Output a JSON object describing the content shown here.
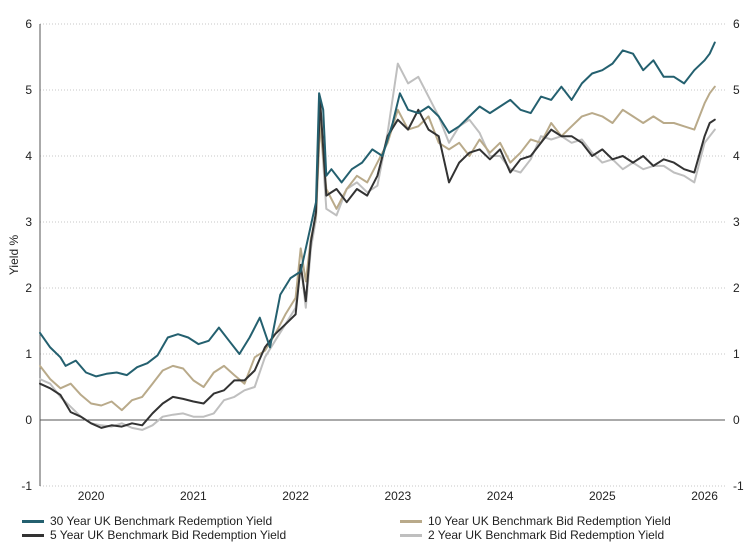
{
  "chart_data": {
    "type": "line",
    "title": "",
    "xlabel": "",
    "ylabel": "Yield %",
    "ylim": [
      -1,
      6
    ],
    "yticks": [
      "-1",
      "0",
      "1",
      "2",
      "3",
      "4",
      "5",
      "6"
    ],
    "xlim": [
      2019.5,
      2026.2
    ],
    "xticks": [
      {
        "label": "2020",
        "x": 2020.0
      },
      {
        "label": "2021",
        "x": 2021.0
      },
      {
        "label": "2022",
        "x": 2022.0
      },
      {
        "label": "2023",
        "x": 2023.0
      },
      {
        "label": "2024",
        "x": 2024.0
      },
      {
        "label": "2025",
        "x": 2025.0
      },
      {
        "label": "2026",
        "x": 2026.0
      }
    ],
    "grid": "horizontal-dotted",
    "legend_position": "bottom",
    "series": [
      {
        "name": "30 Year UK Benchmark Redemption Yield",
        "color": "#24606f",
        "points": [
          [
            2019.5,
            1.32
          ],
          [
            2019.6,
            1.1
          ],
          [
            2019.7,
            0.95
          ],
          [
            2019.75,
            0.82
          ],
          [
            2019.85,
            0.9
          ],
          [
            2019.95,
            0.72
          ],
          [
            2020.05,
            0.66
          ],
          [
            2020.15,
            0.7
          ],
          [
            2020.25,
            0.72
          ],
          [
            2020.35,
            0.68
          ],
          [
            2020.45,
            0.8
          ],
          [
            2020.55,
            0.86
          ],
          [
            2020.65,
            0.98
          ],
          [
            2020.75,
            1.25
          ],
          [
            2020.85,
            1.3
          ],
          [
            2020.95,
            1.25
          ],
          [
            2021.05,
            1.15
          ],
          [
            2021.15,
            1.2
          ],
          [
            2021.25,
            1.4
          ],
          [
            2021.35,
            1.2
          ],
          [
            2021.45,
            1.0
          ],
          [
            2021.55,
            1.25
          ],
          [
            2021.65,
            1.55
          ],
          [
            2021.75,
            1.1
          ],
          [
            2021.85,
            1.9
          ],
          [
            2021.95,
            2.15
          ],
          [
            2022.05,
            2.25
          ],
          [
            2022.15,
            2.95
          ],
          [
            2022.2,
            3.3
          ],
          [
            2022.23,
            4.95
          ],
          [
            2022.27,
            4.7
          ],
          [
            2022.3,
            3.7
          ],
          [
            2022.35,
            3.8
          ],
          [
            2022.45,
            3.6
          ],
          [
            2022.55,
            3.8
          ],
          [
            2022.65,
            3.9
          ],
          [
            2022.75,
            4.1
          ],
          [
            2022.85,
            4.0
          ],
          [
            2022.95,
            4.5
          ],
          [
            2023.02,
            4.95
          ],
          [
            2023.1,
            4.7
          ],
          [
            2023.2,
            4.65
          ],
          [
            2023.3,
            4.75
          ],
          [
            2023.4,
            4.6
          ],
          [
            2023.5,
            4.35
          ],
          [
            2023.6,
            4.45
          ],
          [
            2023.7,
            4.6
          ],
          [
            2023.8,
            4.75
          ],
          [
            2023.9,
            4.65
          ],
          [
            2024.0,
            4.75
          ],
          [
            2024.1,
            4.85
          ],
          [
            2024.2,
            4.7
          ],
          [
            2024.3,
            4.65
          ],
          [
            2024.4,
            4.9
          ],
          [
            2024.5,
            4.85
          ],
          [
            2024.6,
            5.05
          ],
          [
            2024.7,
            4.85
          ],
          [
            2024.8,
            5.1
          ],
          [
            2024.9,
            5.25
          ],
          [
            2025.0,
            5.3
          ],
          [
            2025.1,
            5.4
          ],
          [
            2025.2,
            5.6
          ],
          [
            2025.3,
            5.55
          ],
          [
            2025.4,
            5.3
          ],
          [
            2025.5,
            5.45
          ],
          [
            2025.6,
            5.2
          ],
          [
            2025.7,
            5.2
          ],
          [
            2025.8,
            5.1
          ],
          [
            2025.9,
            5.3
          ],
          [
            2026.0,
            5.45
          ],
          [
            2026.05,
            5.55
          ],
          [
            2026.1,
            5.72
          ]
        ]
      },
      {
        "name": "10 Year UK Benchmark Bid Redemption Yield",
        "color": "#b9aa8a",
        "points": [
          [
            2019.5,
            0.82
          ],
          [
            2019.6,
            0.62
          ],
          [
            2019.7,
            0.48
          ],
          [
            2019.8,
            0.55
          ],
          [
            2019.9,
            0.38
          ],
          [
            2020.0,
            0.25
          ],
          [
            2020.1,
            0.22
          ],
          [
            2020.2,
            0.28
          ],
          [
            2020.3,
            0.15
          ],
          [
            2020.4,
            0.3
          ],
          [
            2020.5,
            0.35
          ],
          [
            2020.6,
            0.55
          ],
          [
            2020.7,
            0.75
          ],
          [
            2020.8,
            0.82
          ],
          [
            2020.9,
            0.78
          ],
          [
            2021.0,
            0.6
          ],
          [
            2021.1,
            0.5
          ],
          [
            2021.2,
            0.72
          ],
          [
            2021.3,
            0.82
          ],
          [
            2021.4,
            0.68
          ],
          [
            2021.5,
            0.55
          ],
          [
            2021.6,
            0.95
          ],
          [
            2021.7,
            1.05
          ],
          [
            2021.8,
            1.3
          ],
          [
            2021.9,
            1.6
          ],
          [
            2022.0,
            1.85
          ],
          [
            2022.05,
            2.6
          ],
          [
            2022.1,
            2.1
          ],
          [
            2022.15,
            2.75
          ],
          [
            2022.2,
            3.1
          ],
          [
            2022.24,
            4.5
          ],
          [
            2022.3,
            3.5
          ],
          [
            2022.4,
            3.2
          ],
          [
            2022.5,
            3.5
          ],
          [
            2022.6,
            3.7
          ],
          [
            2022.7,
            3.6
          ],
          [
            2022.8,
            3.9
          ],
          [
            2022.9,
            4.2
          ],
          [
            2023.0,
            4.7
          ],
          [
            2023.1,
            4.4
          ],
          [
            2023.2,
            4.45
          ],
          [
            2023.3,
            4.6
          ],
          [
            2023.4,
            4.2
          ],
          [
            2023.5,
            4.1
          ],
          [
            2023.6,
            4.2
          ],
          [
            2023.7,
            4.0
          ],
          [
            2023.8,
            4.25
          ],
          [
            2023.9,
            4.05
          ],
          [
            2024.0,
            4.2
          ],
          [
            2024.1,
            3.9
          ],
          [
            2024.2,
            4.05
          ],
          [
            2024.3,
            4.25
          ],
          [
            2024.4,
            4.2
          ],
          [
            2024.5,
            4.5
          ],
          [
            2024.6,
            4.3
          ],
          [
            2024.7,
            4.45
          ],
          [
            2024.8,
            4.6
          ],
          [
            2024.9,
            4.65
          ],
          [
            2025.0,
            4.6
          ],
          [
            2025.1,
            4.5
          ],
          [
            2025.2,
            4.7
          ],
          [
            2025.3,
            4.6
          ],
          [
            2025.4,
            4.5
          ],
          [
            2025.5,
            4.6
          ],
          [
            2025.6,
            4.5
          ],
          [
            2025.7,
            4.5
          ],
          [
            2025.8,
            4.45
          ],
          [
            2025.9,
            4.4
          ],
          [
            2026.0,
            4.8
          ],
          [
            2026.05,
            4.95
          ],
          [
            2026.1,
            5.05
          ]
        ]
      },
      {
        "name": "5 Year UK Benchmark Bid Redemption Yield",
        "color": "#333333",
        "points": [
          [
            2019.5,
            0.55
          ],
          [
            2019.6,
            0.48
          ],
          [
            2019.7,
            0.38
          ],
          [
            2019.8,
            0.12
          ],
          [
            2019.9,
            0.05
          ],
          [
            2020.0,
            -0.05
          ],
          [
            2020.1,
            -0.12
          ],
          [
            2020.2,
            -0.08
          ],
          [
            2020.3,
            -0.1
          ],
          [
            2020.4,
            -0.05
          ],
          [
            2020.5,
            -0.08
          ],
          [
            2020.6,
            0.1
          ],
          [
            2020.7,
            0.25
          ],
          [
            2020.8,
            0.35
          ],
          [
            2020.9,
            0.32
          ],
          [
            2021.0,
            0.28
          ],
          [
            2021.1,
            0.25
          ],
          [
            2021.2,
            0.4
          ],
          [
            2021.3,
            0.45
          ],
          [
            2021.4,
            0.6
          ],
          [
            2021.5,
            0.6
          ],
          [
            2021.6,
            0.75
          ],
          [
            2021.7,
            1.1
          ],
          [
            2021.8,
            1.3
          ],
          [
            2021.9,
            1.45
          ],
          [
            2022.0,
            1.6
          ],
          [
            2022.05,
            2.35
          ],
          [
            2022.1,
            1.8
          ],
          [
            2022.15,
            2.7
          ],
          [
            2022.2,
            3.15
          ],
          [
            2022.24,
            4.85
          ],
          [
            2022.3,
            3.4
          ],
          [
            2022.4,
            3.5
          ],
          [
            2022.5,
            3.3
          ],
          [
            2022.6,
            3.5
          ],
          [
            2022.7,
            3.4
          ],
          [
            2022.8,
            3.7
          ],
          [
            2022.9,
            4.3
          ],
          [
            2023.0,
            4.55
          ],
          [
            2023.1,
            4.4
          ],
          [
            2023.2,
            4.7
          ],
          [
            2023.3,
            4.4
          ],
          [
            2023.4,
            4.3
          ],
          [
            2023.5,
            3.6
          ],
          [
            2023.6,
            3.9
          ],
          [
            2023.7,
            4.05
          ],
          [
            2023.8,
            4.1
          ],
          [
            2023.9,
            3.95
          ],
          [
            2024.0,
            4.1
          ],
          [
            2024.1,
            3.75
          ],
          [
            2024.2,
            3.95
          ],
          [
            2024.3,
            4.0
          ],
          [
            2024.4,
            4.2
          ],
          [
            2024.5,
            4.4
          ],
          [
            2024.6,
            4.3
          ],
          [
            2024.7,
            4.3
          ],
          [
            2024.8,
            4.2
          ],
          [
            2024.9,
            4.0
          ],
          [
            2025.0,
            4.1
          ],
          [
            2025.1,
            3.95
          ],
          [
            2025.2,
            4.0
          ],
          [
            2025.3,
            3.9
          ],
          [
            2025.4,
            4.0
          ],
          [
            2025.5,
            3.85
          ],
          [
            2025.6,
            3.95
          ],
          [
            2025.7,
            3.9
          ],
          [
            2025.8,
            3.8
          ],
          [
            2025.9,
            3.75
          ],
          [
            2026.0,
            4.3
          ],
          [
            2026.05,
            4.5
          ],
          [
            2026.1,
            4.55
          ]
        ]
      },
      {
        "name": "2 Year UK Benchmark Bid Redemption Yield",
        "color": "#bfbfbf",
        "points": [
          [
            2019.5,
            0.62
          ],
          [
            2019.6,
            0.55
          ],
          [
            2019.7,
            0.35
          ],
          [
            2019.8,
            0.2
          ],
          [
            2019.9,
            0.05
          ],
          [
            2020.0,
            -0.05
          ],
          [
            2020.1,
            -0.08
          ],
          [
            2020.2,
            -0.1
          ],
          [
            2020.3,
            -0.05
          ],
          [
            2020.4,
            -0.12
          ],
          [
            2020.5,
            -0.15
          ],
          [
            2020.6,
            -0.08
          ],
          [
            2020.7,
            0.05
          ],
          [
            2020.8,
            0.08
          ],
          [
            2020.9,
            0.1
          ],
          [
            2021.0,
            0.05
          ],
          [
            2021.1,
            0.05
          ],
          [
            2021.2,
            0.1
          ],
          [
            2021.3,
            0.3
          ],
          [
            2021.4,
            0.35
          ],
          [
            2021.5,
            0.45
          ],
          [
            2021.6,
            0.5
          ],
          [
            2021.7,
            0.95
          ],
          [
            2021.8,
            1.2
          ],
          [
            2021.9,
            1.45
          ],
          [
            2022.0,
            1.7
          ],
          [
            2022.05,
            2.35
          ],
          [
            2022.1,
            1.7
          ],
          [
            2022.15,
            2.6
          ],
          [
            2022.2,
            3.05
          ],
          [
            2022.24,
            4.6
          ],
          [
            2022.3,
            3.2
          ],
          [
            2022.4,
            3.1
          ],
          [
            2022.5,
            3.5
          ],
          [
            2022.6,
            3.6
          ],
          [
            2022.7,
            3.45
          ],
          [
            2022.8,
            3.55
          ],
          [
            2022.9,
            4.35
          ],
          [
            2023.0,
            5.4
          ],
          [
            2023.1,
            5.1
          ],
          [
            2023.2,
            5.2
          ],
          [
            2023.3,
            4.9
          ],
          [
            2023.4,
            4.6
          ],
          [
            2023.5,
            4.2
          ],
          [
            2023.6,
            4.45
          ],
          [
            2023.7,
            4.55
          ],
          [
            2023.8,
            4.35
          ],
          [
            2023.9,
            4.0
          ],
          [
            2024.0,
            4.0
          ],
          [
            2024.1,
            3.8
          ],
          [
            2024.2,
            3.75
          ],
          [
            2024.3,
            3.95
          ],
          [
            2024.4,
            4.3
          ],
          [
            2024.5,
            4.25
          ],
          [
            2024.6,
            4.3
          ],
          [
            2024.7,
            4.2
          ],
          [
            2024.8,
            4.25
          ],
          [
            2024.9,
            4.05
          ],
          [
            2025.0,
            3.9
          ],
          [
            2025.1,
            3.95
          ],
          [
            2025.2,
            3.8
          ],
          [
            2025.3,
            3.9
          ],
          [
            2025.4,
            3.8
          ],
          [
            2025.5,
            3.85
          ],
          [
            2025.6,
            3.85
          ],
          [
            2025.7,
            3.75
          ],
          [
            2025.8,
            3.7
          ],
          [
            2025.9,
            3.6
          ],
          [
            2026.0,
            4.2
          ],
          [
            2026.05,
            4.3
          ],
          [
            2026.1,
            4.4
          ]
        ]
      }
    ]
  }
}
